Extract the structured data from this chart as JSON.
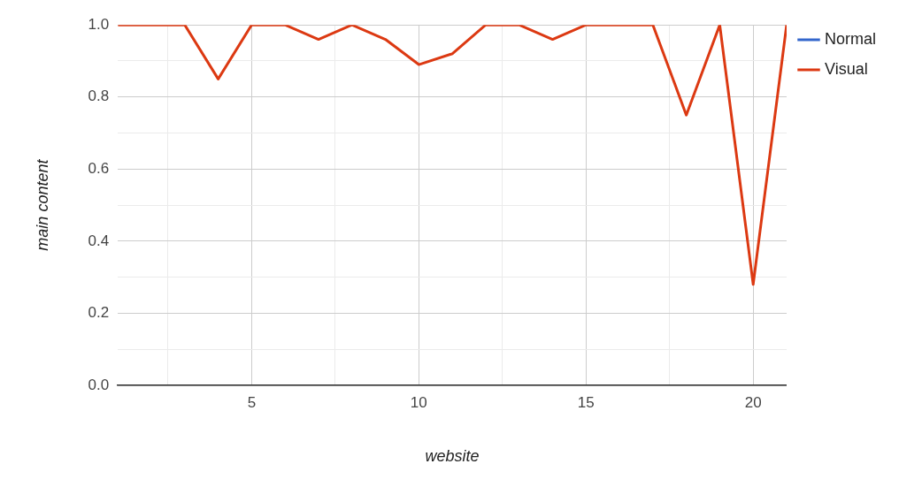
{
  "chart_data": {
    "type": "line",
    "xlabel": "website",
    "ylabel": "main content",
    "x": [
      1,
      2,
      3,
      4,
      5,
      6,
      7,
      8,
      9,
      10,
      11,
      12,
      13,
      14,
      15,
      16,
      17,
      18,
      19,
      20,
      21
    ],
    "series": [
      {
        "name": "Normal",
        "color": "#3366cc",
        "values": [
          null,
          null,
          null,
          null,
          null,
          null,
          null,
          null,
          null,
          null,
          null,
          null,
          null,
          null,
          null,
          null,
          null,
          null,
          null,
          null,
          null
        ]
      },
      {
        "name": "Visual",
        "color": "#dc3912",
        "values": [
          1,
          1,
          1,
          0.85,
          1,
          1,
          0.96,
          1,
          0.96,
          0.89,
          0.92,
          1,
          1,
          0.96,
          1,
          1,
          1,
          0.75,
          1,
          0.28,
          1
        ]
      }
    ],
    "xlim": [
      1,
      21
    ],
    "xticks": [
      {
        "value": 2.5,
        "label": null
      },
      5,
      {
        "value": 7.5,
        "label": null
      },
      10,
      {
        "value": 12.5,
        "label": null
      },
      15,
      {
        "value": 17.5,
        "label": null
      },
      20
    ],
    "ylim": [
      0,
      1
    ],
    "yticks": [
      {
        "value": 0,
        "label": "0.0"
      },
      {
        "value": 0.1,
        "label": null
      },
      {
        "value": 0.2,
        "label": "0.2"
      },
      {
        "value": 0.3,
        "label": null
      },
      {
        "value": 0.4,
        "label": "0.4"
      },
      {
        "value": 0.5,
        "label": null
      },
      {
        "value": 0.6,
        "label": "0.6"
      },
      {
        "value": 0.7,
        "label": null
      },
      {
        "value": 0.8,
        "label": "0.8"
      },
      {
        "value": 0.9,
        "label": null
      },
      {
        "value": 1,
        "label": "1.0"
      }
    ],
    "grid": true,
    "legend": "top right",
    "marker": "none",
    "line_style": "solid"
  }
}
